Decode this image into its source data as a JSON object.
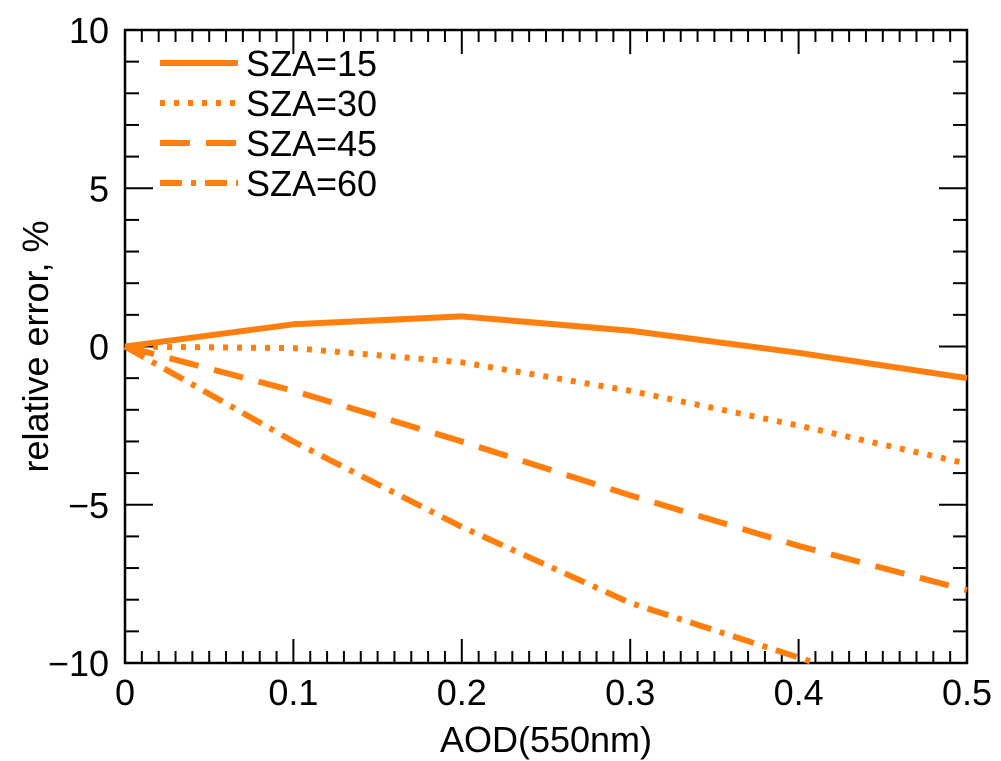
{
  "chart_data": {
    "type": "line",
    "xlabel": "AOD(550nm)",
    "ylabel": "relative error, %",
    "xlim": [
      0,
      0.5
    ],
    "ylim": [
      -10,
      10
    ],
    "xticks": [
      "0",
      "0.1",
      "0.2",
      "0.3",
      "0.4",
      "0.5"
    ],
    "yticks": [
      "10",
      "5",
      "0",
      "−5",
      "−10"
    ],
    "legend_position": "top-left",
    "grid": false,
    "color": "#FF7F0E",
    "series": [
      {
        "name": "SZA=15",
        "style": "solid",
        "x": [
          0,
          0.1,
          0.2,
          0.3,
          0.4,
          0.5
        ],
        "y": [
          0,
          0.7,
          0.95,
          0.5,
          -0.2,
          -1.0
        ]
      },
      {
        "name": "SZA=30",
        "style": "dotted",
        "x": [
          0,
          0.1,
          0.2,
          0.3,
          0.4,
          0.5
        ],
        "y": [
          0,
          -0.05,
          -0.5,
          -1.4,
          -2.5,
          -3.7
        ]
      },
      {
        "name": "SZA=45",
        "style": "dashed",
        "x": [
          0,
          0.1,
          0.2,
          0.3,
          0.4,
          0.5
        ],
        "y": [
          0,
          -1.4,
          -3.0,
          -4.7,
          -6.3,
          -7.7
        ]
      },
      {
        "name": "SZA=60",
        "style": "dashdot",
        "x": [
          0,
          0.1,
          0.2,
          0.3,
          0.41
        ],
        "y": [
          0,
          -3.0,
          -5.7,
          -8.1,
          -10.0
        ]
      }
    ]
  }
}
